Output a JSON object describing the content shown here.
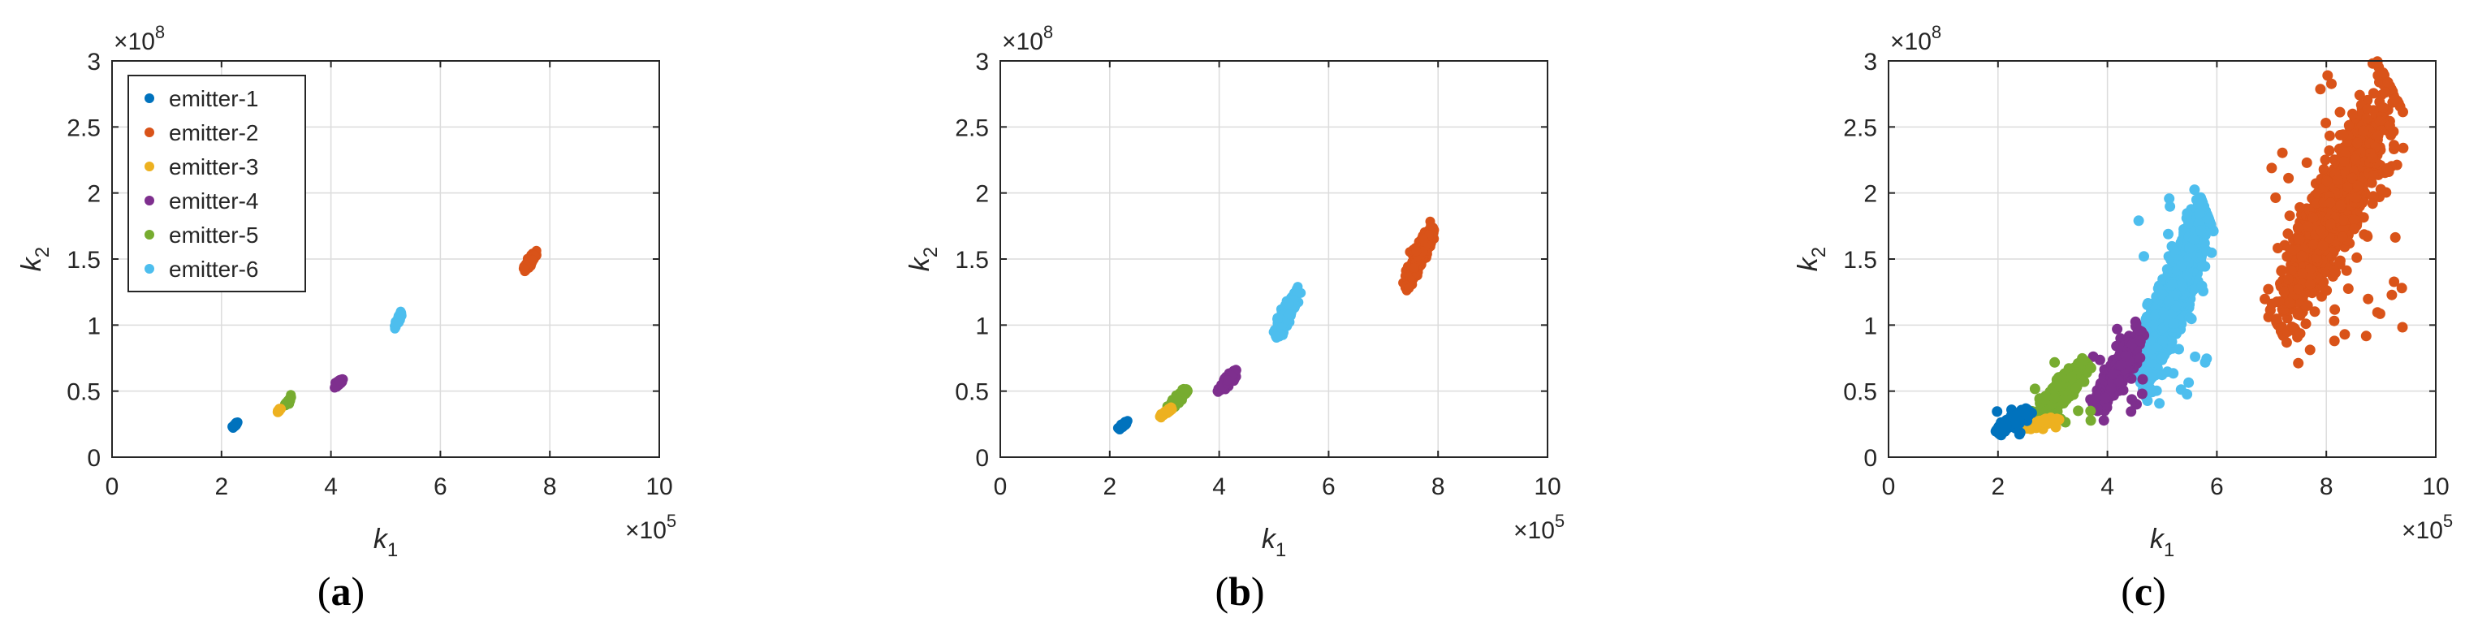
{
  "figure": {
    "panel_labels": [
      "(a)",
      "(b)",
      "(c)"
    ]
  },
  "chart_data": [
    {
      "type": "scatter",
      "panel": "(a)",
      "xlabel": "k1",
      "ylabel": "k2",
      "x_multiplier": "×10^5",
      "y_multiplier": "×10^8",
      "xlim": [
        0,
        10
      ],
      "ylim": [
        0,
        3
      ],
      "xticks": [
        "0",
        "2",
        "4",
        "6",
        "8",
        "10"
      ],
      "yticks": [
        "0",
        "0.5",
        "1",
        "1.5",
        "2",
        "2.5",
        "3"
      ],
      "grid": true,
      "legend": "top-left",
      "series": [
        {
          "name": "emitter-1",
          "color": "#0072BD",
          "cluster": {
            "x": [
              2.2,
              2.3
            ],
            "y": [
              0.22,
              0.27
            ]
          }
        },
        {
          "name": "emitter-2",
          "color": "#D95319",
          "cluster": {
            "x": [
              7.5,
              7.8
            ],
            "y": [
              1.4,
              1.58
            ]
          }
        },
        {
          "name": "emitter-3",
          "color": "#EDB120",
          "cluster": {
            "x": [
              3.0,
              3.1
            ],
            "y": [
              0.33,
              0.38
            ]
          }
        },
        {
          "name": "emitter-4",
          "color": "#7E2F8E",
          "cluster": {
            "x": [
              4.05,
              4.25
            ],
            "y": [
              0.52,
              0.61
            ]
          }
        },
        {
          "name": "emitter-5",
          "color": "#77AC30",
          "cluster": {
            "x": [
              3.15,
              3.3
            ],
            "y": [
              0.38,
              0.47
            ]
          }
        },
        {
          "name": "emitter-6",
          "color": "#4DBEEE",
          "cluster": {
            "x": [
              5.15,
              5.3
            ],
            "y": [
              0.97,
              1.1
            ]
          }
        }
      ]
    },
    {
      "type": "scatter",
      "panel": "(b)",
      "xlabel": "k1",
      "ylabel": "k2",
      "x_multiplier": "×10^5",
      "y_multiplier": "×10^8",
      "xlim": [
        0,
        10
      ],
      "ylim": [
        0,
        3
      ],
      "xticks": [
        "0",
        "2",
        "4",
        "6",
        "8",
        "10"
      ],
      "yticks": [
        "0",
        "0.5",
        "1",
        "1.5",
        "2",
        "2.5",
        "3"
      ],
      "grid": true,
      "legend": "none",
      "series": [
        {
          "name": "emitter-1",
          "color": "#0072BD",
          "cluster": {
            "x": [
              2.15,
              2.35
            ],
            "y": [
              0.21,
              0.28
            ]
          }
        },
        {
          "name": "emitter-2",
          "color": "#D95319",
          "cluster": {
            "x": [
              7.35,
              7.95
            ],
            "y": [
              1.25,
              1.78
            ]
          }
        },
        {
          "name": "emitter-3",
          "color": "#EDB120",
          "cluster": {
            "x": [
              2.9,
              3.15
            ],
            "y": [
              0.3,
              0.38
            ]
          }
        },
        {
          "name": "emitter-4",
          "color": "#7E2F8E",
          "cluster": {
            "x": [
              3.95,
              4.35
            ],
            "y": [
              0.48,
              0.67
            ]
          }
        },
        {
          "name": "emitter-5",
          "color": "#77AC30",
          "cluster": {
            "x": [
              3.05,
              3.45
            ],
            "y": [
              0.36,
              0.53
            ]
          }
        },
        {
          "name": "emitter-6",
          "color": "#4DBEEE",
          "cluster": {
            "x": [
              5.0,
              5.5
            ],
            "y": [
              0.88,
              1.3
            ]
          }
        }
      ]
    },
    {
      "type": "scatter",
      "panel": "(c)",
      "xlabel": "k1",
      "ylabel": "k2",
      "x_multiplier": "×10^5",
      "y_multiplier": "×10^8",
      "xlim": [
        0,
        10
      ],
      "ylim": [
        0,
        3
      ],
      "xticks": [
        "0",
        "2",
        "4",
        "6",
        "8",
        "10"
      ],
      "yticks": [
        "0",
        "0.5",
        "1",
        "1.5",
        "2",
        "2.5",
        "3"
      ],
      "grid": true,
      "legend": "none",
      "series": [
        {
          "name": "emitter-1",
          "color": "#0072BD",
          "cluster": {
            "x": [
              1.95,
              2.6
            ],
            "y": [
              0.17,
              0.37
            ]
          }
        },
        {
          "name": "emitter-2",
          "color": "#D95319",
          "cluster": {
            "x": [
              6.9,
              9.4
            ],
            "y": [
              0.87,
              2.92
            ]
          }
        },
        {
          "name": "emitter-3",
          "color": "#EDB120",
          "cluster": {
            "x": [
              2.4,
              3.1
            ],
            "y": [
              0.21,
              0.3
            ]
          }
        },
        {
          "name": "emitter-4",
          "color": "#7E2F8E",
          "cluster": {
            "x": [
              3.7,
              4.7
            ],
            "y": [
              0.33,
              1.0
            ]
          }
        },
        {
          "name": "emitter-5",
          "color": "#77AC30",
          "cluster": {
            "x": [
              2.6,
              3.7
            ],
            "y": [
              0.25,
              0.75
            ]
          }
        },
        {
          "name": "emitter-6",
          "color": "#4DBEEE",
          "cluster": {
            "x": [
              4.5,
              5.9
            ],
            "y": [
              0.45,
              1.98
            ]
          }
        }
      ]
    }
  ]
}
